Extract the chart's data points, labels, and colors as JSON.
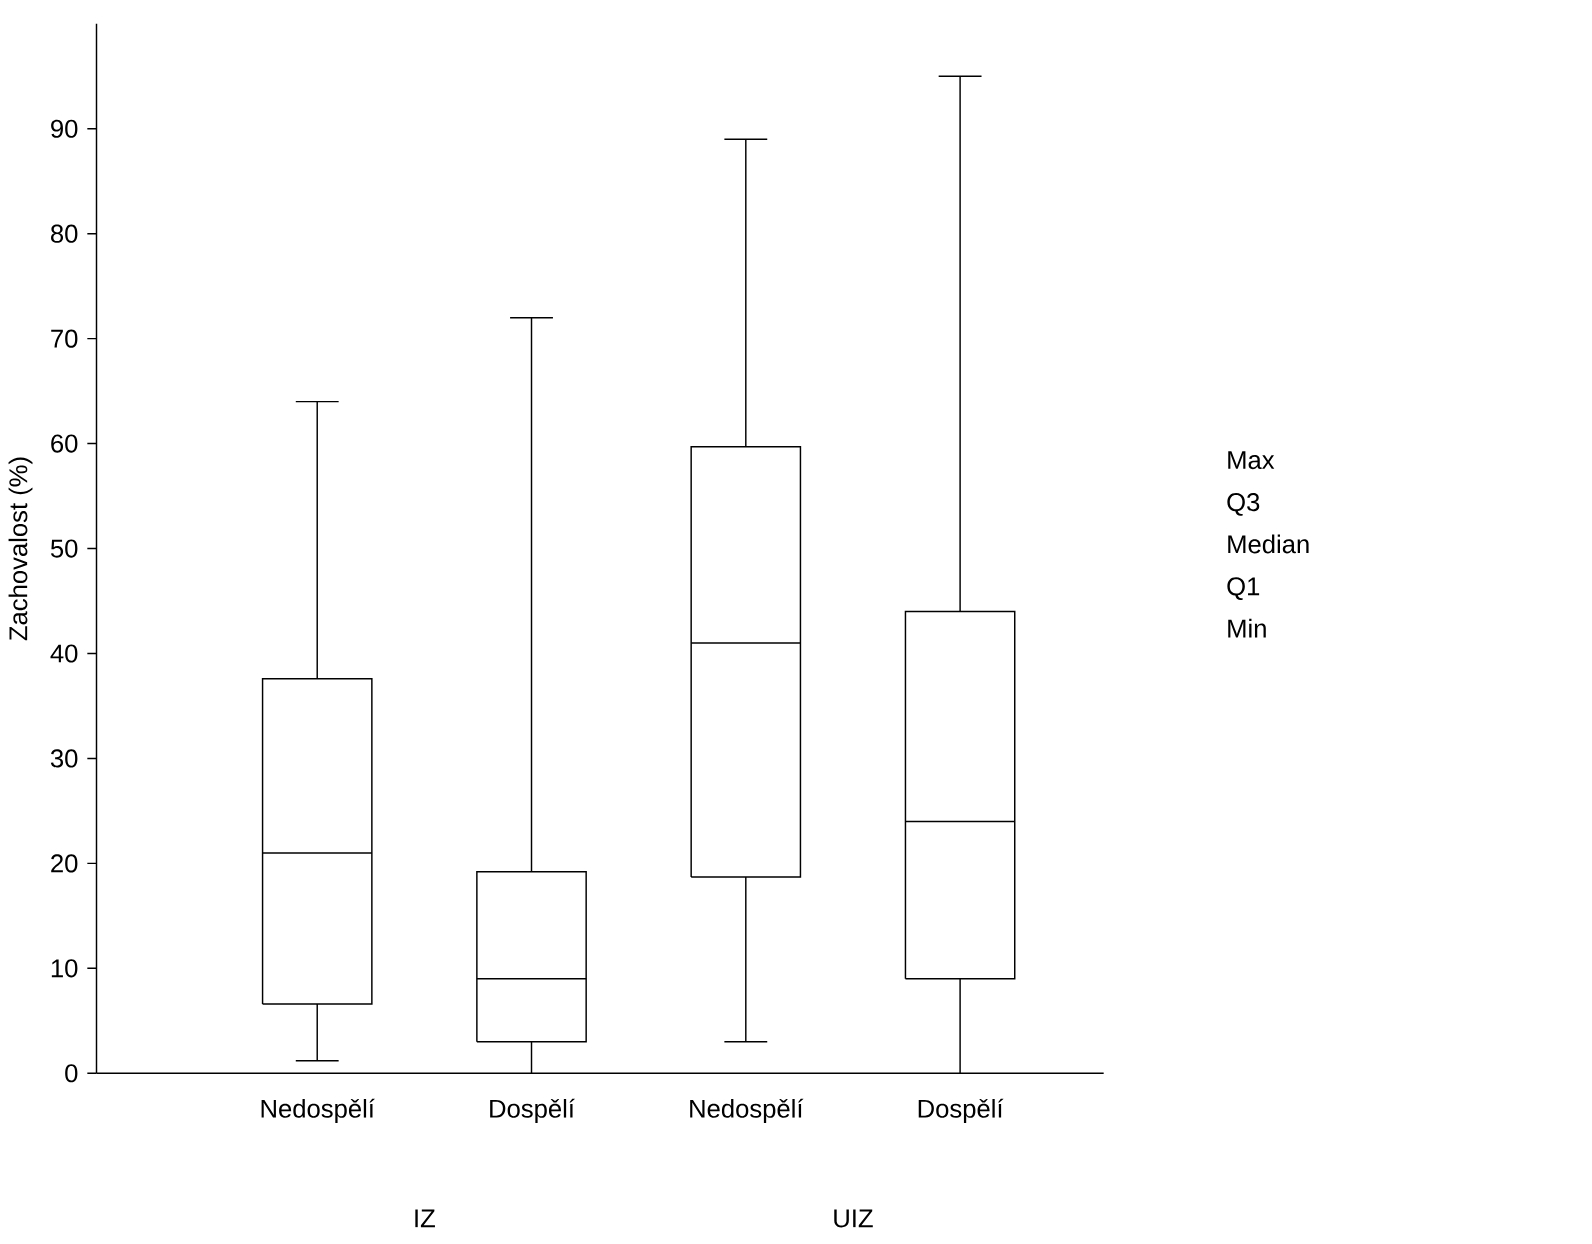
{
  "chart_data": {
    "type": "box",
    "ylabel": "Zachovalost (%)",
    "categories": [
      "Nedospělí",
      "Dospělí",
      "Nedospělí",
      "Dospělí"
    ],
    "boxes": [
      {
        "low": 1.2,
        "q1": 6.6,
        "median": 21,
        "q3": 37.6,
        "high": 64
      },
      {
        "low": 0,
        "q1": 3,
        "median": 9,
        "q3": 19.2,
        "high": 72
      },
      {
        "low": 3,
        "q1": 18.7,
        "median": 41,
        "q3": 59.7,
        "high": 89
      },
      {
        "low": 0,
        "q1": 9,
        "median": 24,
        "q3": 44,
        "high": 95
      }
    ],
    "color": "#000000",
    "ylim": [
      0,
      100
    ],
    "yticks": [
      0,
      10,
      20,
      30,
      40,
      50,
      60,
      70,
      80,
      90
    ],
    "annotations": [
      "IZ",
      "UIZ",
      "Max",
      "Q3",
      "Median",
      "Q1",
      "Min"
    ]
  }
}
